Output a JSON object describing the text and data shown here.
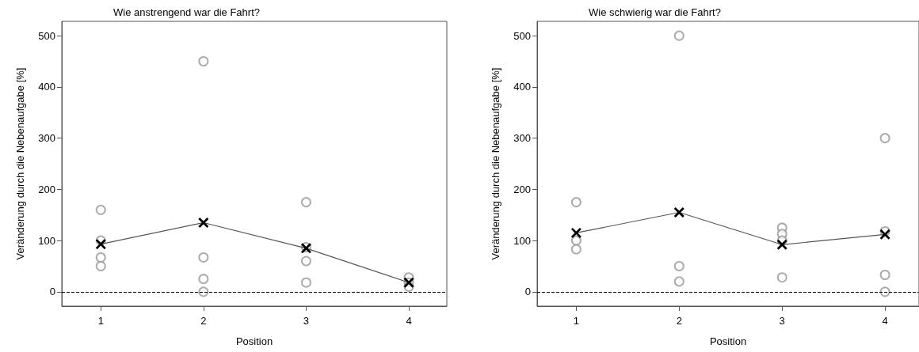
{
  "chart_data": [
    {
      "type": "scatter",
      "title": "Wie anstrengend war die Fahrt?",
      "xlabel": "Position",
      "ylabel": "Veränderung durch die Nebenaufgabe [%]",
      "xlim": [
        0.62,
        4.37
      ],
      "xticks": [
        1,
        2,
        3,
        4
      ],
      "ylim": [
        -28,
        528
      ],
      "yticks": [
        0,
        100,
        200,
        300,
        400,
        500
      ],
      "grid": false,
      "ref_lines": [
        {
          "axis": "y",
          "value": 0,
          "line_style": "dashed",
          "color": "#000000"
        }
      ],
      "series": [
        {
          "type": "scatter",
          "color": "#999999",
          "marker": "circle",
          "x": [
            1,
            1,
            1,
            1,
            2,
            2,
            2,
            2,
            3,
            3,
            3,
            3,
            4,
            4,
            4
          ],
          "values": [
            160,
            100,
            67,
            50,
            450,
            67,
            25,
            0,
            175,
            87,
            60,
            18,
            28,
            18,
            10
          ]
        },
        {
          "type": "line",
          "color": "#000000",
          "marker": "cross",
          "x": [
            1,
            2,
            3,
            4
          ],
          "values": [
            93,
            135,
            85,
            18
          ]
        }
      ]
    },
    {
      "type": "scatter",
      "title": "Wie schwierig war die Fahrt?",
      "xlabel": "Position",
      "ylabel": "Veränderung durch die Nebenaufgabe [%]",
      "xlim": [
        0.62,
        4.33
      ],
      "xticks": [
        1,
        2,
        3,
        4
      ],
      "ylim": [
        -28,
        528
      ],
      "yticks": [
        0,
        100,
        200,
        300,
        400,
        500
      ],
      "grid": false,
      "ref_lines": [
        {
          "axis": "y",
          "value": 0,
          "line_style": "dashed",
          "color": "#000000"
        }
      ],
      "series": [
        {
          "type": "scatter",
          "color": "#999999",
          "marker": "circle",
          "x": [
            1,
            1,
            1,
            2,
            2,
            2,
            3,
            3,
            3,
            3,
            4,
            4,
            4,
            4
          ],
          "values": [
            175,
            100,
            83,
            500,
            50,
            20,
            125,
            113,
            100,
            28,
            300,
            118,
            33,
            0
          ]
        },
        {
          "type": "line",
          "color": "#000000",
          "marker": "cross",
          "x": [
            1,
            2,
            3,
            4
          ],
          "values": [
            115,
            155,
            92,
            112
          ]
        }
      ]
    }
  ]
}
